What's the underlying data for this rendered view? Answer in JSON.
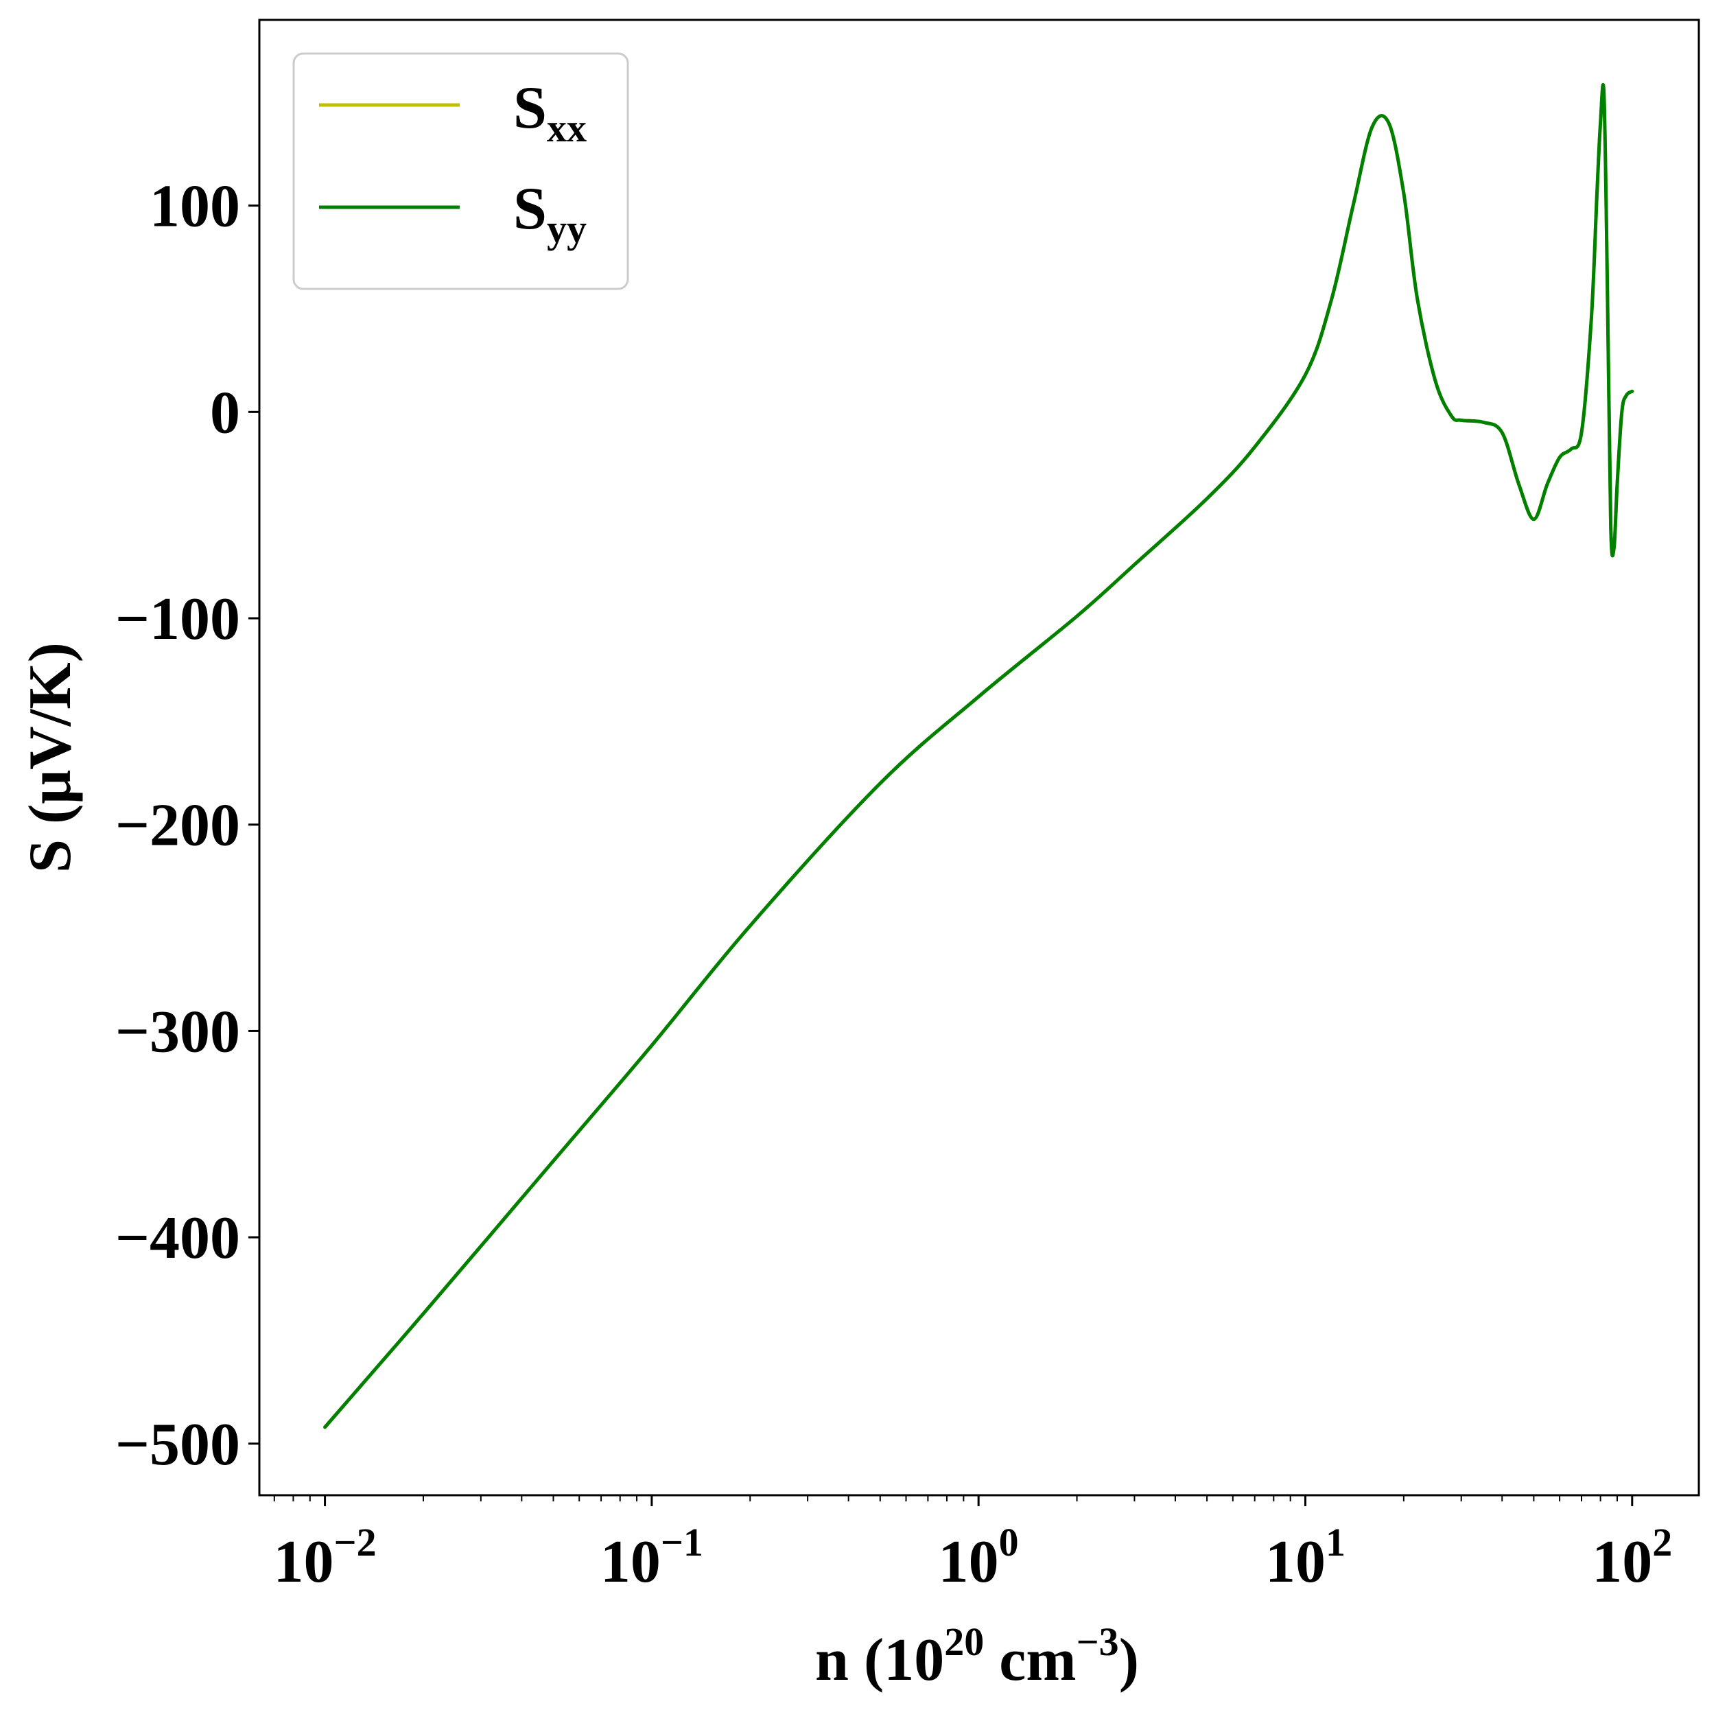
{
  "chart_data": {
    "type": "line",
    "xscale": "log",
    "xlim": [
      0.0063,
      160
    ],
    "ylim": [
      -525,
      190
    ],
    "xlabel": {
      "base": "n (10",
      "sup1": "20",
      "mid": " cm",
      "sup2": "−3",
      "end": ")"
    },
    "ylabel": "S (μV/K)",
    "x_ticks": [
      {
        "value": 0.01,
        "base": "10",
        "exp": "−2"
      },
      {
        "value": 0.1,
        "base": "10",
        "exp": "−1"
      },
      {
        "value": 1,
        "base": "10",
        "exp": "0"
      },
      {
        "value": 10,
        "base": "10",
        "exp": "1"
      },
      {
        "value": 100,
        "base": "10",
        "exp": "2"
      }
    ],
    "y_ticks": [
      {
        "value": 100,
        "label": "100"
      },
      {
        "value": 0,
        "label": "0"
      },
      {
        "value": -100,
        "label": "−100"
      },
      {
        "value": -200,
        "label": "−200"
      },
      {
        "value": -300,
        "label": "−300"
      },
      {
        "value": -400,
        "label": "−400"
      },
      {
        "value": -500,
        "label": "−500"
      }
    ],
    "grid": false,
    "legend_position": "top-left",
    "series": [
      {
        "name": "S",
        "sub": "xx",
        "color": "#bfbf00",
        "x": [
          0.01,
          0.02,
          0.05,
          0.1,
          0.2,
          0.5,
          1,
          2,
          3,
          5,
          7,
          10,
          12,
          14,
          16,
          18,
          20,
          22,
          25,
          28,
          30,
          35,
          40,
          45,
          50,
          55,
          60,
          65,
          70,
          75,
          78,
          80,
          82,
          84,
          86,
          88,
          90,
          93,
          96,
          100
        ],
        "y": [
          -492,
          -437,
          -363,
          -307,
          -249,
          -180,
          -138,
          -99,
          -74,
          -42,
          -17,
          18,
          54,
          100,
          138,
          140,
          106,
          55,
          15,
          -2,
          -4,
          -5,
          -10,
          -35,
          -52,
          -35,
          -22,
          -18,
          -10,
          45,
          105,
          140,
          154,
          60,
          -55,
          -66,
          -35,
          0,
          8,
          10
        ]
      },
      {
        "name": "S",
        "sub": "yy",
        "color": "#008000",
        "x": [
          0.01,
          0.02,
          0.05,
          0.1,
          0.2,
          0.5,
          1,
          2,
          3,
          5,
          7,
          10,
          12,
          14,
          16,
          18,
          20,
          22,
          25,
          28,
          30,
          35,
          40,
          45,
          50,
          55,
          60,
          65,
          70,
          75,
          78,
          80,
          82,
          84,
          86,
          88,
          90,
          93,
          96,
          100
        ],
        "y": [
          -492,
          -437,
          -363,
          -307,
          -249,
          -180,
          -138,
          -99,
          -74,
          -42,
          -17,
          18,
          54,
          100,
          138,
          140,
          106,
          55,
          15,
          -2,
          -4,
          -5,
          -10,
          -35,
          -52,
          -35,
          -22,
          -18,
          -10,
          45,
          105,
          140,
          154,
          60,
          -55,
          -66,
          -35,
          0,
          8,
          10
        ]
      }
    ]
  }
}
